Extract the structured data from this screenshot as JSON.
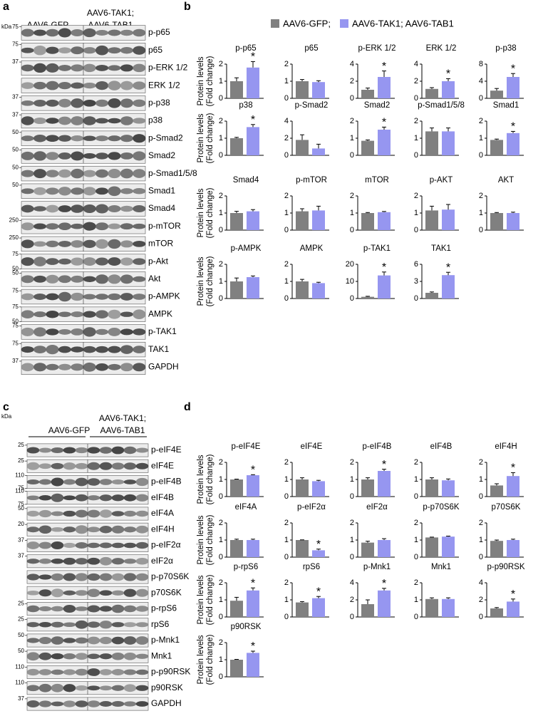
{
  "panel_a": {
    "label": "a",
    "kda": "kDa",
    "group_1": [
      "AAV6-GFP"
    ],
    "group_2": [
      "AAV6-TAK1;",
      "AAV6-TAB1"
    ],
    "rows": [
      {
        "name": "p-p65",
        "markers": [
          "75"
        ]
      },
      {
        "name": "p65",
        "markers": [
          "75"
        ]
      },
      {
        "name": "p-ERK 1/2",
        "markers": [
          "37"
        ]
      },
      {
        "name": "ERK 1/2",
        "markers": []
      },
      {
        "name": "p-p38",
        "markers": [
          "37"
        ]
      },
      {
        "name": "p38",
        "markers": [
          "37"
        ]
      },
      {
        "name": "p-Smad2",
        "markers": [
          "50"
        ]
      },
      {
        "name": "Smad2",
        "markers": [
          "50"
        ]
      },
      {
        "name": "p-Smad1/5/8",
        "markers": [
          "50"
        ]
      },
      {
        "name": "Smad1",
        "markers": [
          "50"
        ]
      },
      {
        "name": "Smad4",
        "markers": []
      },
      {
        "name": "p-mTOR",
        "markers": [
          "250"
        ]
      },
      {
        "name": "mTOR",
        "markers": [
          "250"
        ]
      },
      {
        "name": "p-Akt",
        "markers": [
          "75",
          "50"
        ]
      },
      {
        "name": "Akt",
        "markers": [
          "50"
        ]
      },
      {
        "name": "p-AMPK",
        "markers": [
          "75"
        ]
      },
      {
        "name": "AMPK",
        "markers": [
          "75",
          "50"
        ]
      },
      {
        "name": "p-TAK1",
        "markers": [
          "75"
        ]
      },
      {
        "name": "TAK1",
        "markers": [
          "75"
        ]
      },
      {
        "name": "GAPDH",
        "markers": [
          "37"
        ]
      }
    ]
  },
  "panel_b": {
    "label": "b"
  },
  "panel_c": {
    "label": "c",
    "kda": "kDa",
    "group_1": [
      "AAV6-GFP"
    ],
    "group_2": [
      "AAV6-TAK1;",
      "AAV6-TAB1"
    ],
    "rows": [
      {
        "name": "p-eIF4E",
        "markers": [
          "25"
        ]
      },
      {
        "name": "eIF4E",
        "markers": [
          "25"
        ]
      },
      {
        "name": "p-eIF4B",
        "markers": [
          "110",
          "75"
        ]
      },
      {
        "name": "eIF4B",
        "markers": [
          "110",
          "75"
        ]
      },
      {
        "name": "eIF4A",
        "markers": [
          "50"
        ]
      },
      {
        "name": "eIF4H",
        "markers": [
          "20"
        ]
      },
      {
        "name": "p-eIF2α",
        "markers": [
          "37"
        ]
      },
      {
        "name": "eIF2α",
        "markers": [
          "37"
        ]
      },
      {
        "name": "p-p70S6K",
        "markers": []
      },
      {
        "name": "p70S6K",
        "markers": []
      },
      {
        "name": "p-rpS6",
        "markers": [
          "25"
        ]
      },
      {
        "name": "rpS6",
        "markers": [
          "25"
        ]
      },
      {
        "name": "p-Mnk1",
        "markers": [
          "50"
        ]
      },
      {
        "name": "Mnk1",
        "markers": [
          "50"
        ]
      },
      {
        "name": "p-p90RSK",
        "markers": [
          "110"
        ]
      },
      {
        "name": "p90RSK",
        "markers": [
          "110"
        ]
      },
      {
        "name": "GAPDH",
        "markers": [
          "37"
        ]
      }
    ]
  },
  "panel_d": {
    "label": "d"
  },
  "legend": {
    "entries": [
      "AAV6-GFP;",
      "AAV6-TAK1; AAV6-TAB1"
    ],
    "colors": [
      "#808080",
      "#9696f0"
    ]
  },
  "y_label": [
    "Protein levels",
    "(Fold change)"
  ],
  "chart_data": [
    {
      "type": "bar",
      "title": "p-p65",
      "values": [
        1.0,
        1.8
      ],
      "errors": [
        0.2,
        0.35
      ],
      "ylim": [
        0,
        2
      ],
      "yticks": [
        0,
        1,
        2
      ],
      "annotation": "*"
    },
    {
      "type": "bar",
      "title": "p65",
      "values": [
        1.0,
        0.95
      ],
      "errors": [
        0.1,
        0.08
      ],
      "ylim": [
        0,
        2
      ],
      "yticks": [
        0,
        1,
        2
      ]
    },
    {
      "type": "bar",
      "title": "p-ERK 1/2",
      "values": [
        1.0,
        2.5
      ],
      "errors": [
        0.2,
        0.7
      ],
      "ylim": [
        0,
        4
      ],
      "yticks": [
        0,
        2,
        4
      ],
      "annotation": "*"
    },
    {
      "type": "bar",
      "title": "ERK 1/2",
      "values": [
        1.1,
        2.0
      ],
      "errors": [
        0.15,
        0.3
      ],
      "ylim": [
        0,
        4
      ],
      "yticks": [
        0,
        2,
        4
      ],
      "annotation": "*"
    },
    {
      "type": "bar",
      "title": "p-p38",
      "values": [
        1.8,
        5.0
      ],
      "errors": [
        0.5,
        0.8
      ],
      "ylim": [
        0,
        8
      ],
      "yticks": [
        0,
        4,
        8
      ],
      "annotation": "*"
    },
    {
      "type": "bar",
      "title": "p38",
      "values": [
        1.0,
        1.65
      ],
      "errors": [
        0.05,
        0.15
      ],
      "ylim": [
        0,
        2
      ],
      "yticks": [
        0,
        1,
        2
      ],
      "annotation": "*"
    },
    {
      "type": "bar",
      "title": "p-Smad2",
      "values": [
        1.8,
        0.8
      ],
      "errors": [
        0.6,
        0.5
      ],
      "ylim": [
        0,
        4
      ],
      "yticks": [
        0,
        2,
        4
      ]
    },
    {
      "type": "bar",
      "title": "Smad2",
      "values": [
        0.85,
        1.5
      ],
      "errors": [
        0.05,
        0.15
      ],
      "ylim": [
        0,
        2
      ],
      "yticks": [
        0,
        1,
        2
      ],
      "annotation": "*"
    },
    {
      "type": "bar",
      "title": "p-Smad1/5/8",
      "values": [
        1.4,
        1.4
      ],
      "errors": [
        0.2,
        0.2
      ],
      "ylim": [
        0,
        2
      ],
      "yticks": [
        0,
        1,
        2
      ]
    },
    {
      "type": "bar",
      "title": "Smad1",
      "values": [
        0.9,
        1.3
      ],
      "errors": [
        0.05,
        0.1
      ],
      "ylim": [
        0,
        2
      ],
      "yticks": [
        0,
        1,
        2
      ],
      "annotation": "*"
    },
    {
      "type": "bar",
      "title": "Smad4",
      "values": [
        1.0,
        1.1
      ],
      "errors": [
        0.1,
        0.1
      ],
      "ylim": [
        0,
        2
      ],
      "yticks": [
        0,
        1,
        2
      ]
    },
    {
      "type": "bar",
      "title": "p-mTOR",
      "values": [
        1.1,
        1.15
      ],
      "errors": [
        0.15,
        0.25
      ],
      "ylim": [
        0,
        2
      ],
      "yticks": [
        0,
        1,
        2
      ]
    },
    {
      "type": "bar",
      "title": "mTOR",
      "values": [
        1.0,
        1.05
      ],
      "errors": [
        0.03,
        0.04
      ],
      "ylim": [
        0,
        2
      ],
      "yticks": [
        0,
        1,
        2
      ]
    },
    {
      "type": "bar",
      "title": "p-AKT",
      "values": [
        1.15,
        1.2
      ],
      "errors": [
        0.25,
        0.3
      ],
      "ylim": [
        0,
        2
      ],
      "yticks": [
        0,
        1,
        2
      ]
    },
    {
      "type": "bar",
      "title": "AKT",
      "values": [
        1.0,
        1.0
      ],
      "errors": [
        0.03,
        0.05
      ],
      "ylim": [
        0,
        2
      ],
      "yticks": [
        0,
        1,
        2
      ]
    },
    {
      "type": "bar",
      "title": "p-AMPK",
      "values": [
        1.0,
        1.25
      ],
      "errors": [
        0.2,
        0.07
      ],
      "ylim": [
        0,
        2
      ],
      "yticks": [
        0,
        1,
        2
      ]
    },
    {
      "type": "bar",
      "title": "AMPK",
      "values": [
        1.0,
        0.9
      ],
      "errors": [
        0.12,
        0.05
      ],
      "ylim": [
        0,
        2
      ],
      "yticks": [
        0,
        1,
        2
      ]
    },
    {
      "type": "bar",
      "title": "p-TAK1",
      "values": [
        1.0,
        13.5
      ],
      "errors": [
        0.3,
        2.0
      ],
      "ylim": [
        0,
        20
      ],
      "yticks": [
        0,
        10,
        20
      ],
      "annotation": "*"
    },
    {
      "type": "bar",
      "title": "TAK1",
      "values": [
        1.0,
        4.1
      ],
      "errors": [
        0.15,
        0.5
      ],
      "ylim": [
        0,
        6
      ],
      "yticks": [
        0,
        3,
        6
      ],
      "annotation": "*"
    },
    {
      "type": "bar",
      "title": "p-eIF4E",
      "values": [
        1.0,
        1.25
      ],
      "errors": [
        0.02,
        0.03
      ],
      "ylim": [
        0,
        2
      ],
      "yticks": [
        0,
        1,
        2
      ],
      "annotation": "*"
    },
    {
      "type": "bar",
      "title": "eIF4E",
      "values": [
        1.0,
        0.9
      ],
      "errors": [
        0.1,
        0.05
      ],
      "ylim": [
        0,
        2
      ],
      "yticks": [
        0,
        1,
        2
      ]
    },
    {
      "type": "bar",
      "title": "p-eIF4B",
      "values": [
        1.0,
        1.5
      ],
      "errors": [
        0.1,
        0.1
      ],
      "ylim": [
        0,
        2
      ],
      "yticks": [
        0,
        1,
        2
      ],
      "annotation": "*"
    },
    {
      "type": "bar",
      "title": "eIF4B",
      "values": [
        1.0,
        0.95
      ],
      "errors": [
        0.1,
        0.08
      ],
      "ylim": [
        0,
        2
      ],
      "yticks": [
        0,
        1,
        2
      ]
    },
    {
      "type": "bar",
      "title": "eIF4H",
      "values": [
        0.65,
        1.2
      ],
      "errors": [
        0.1,
        0.2
      ],
      "ylim": [
        0,
        2
      ],
      "yticks": [
        0,
        1,
        2
      ],
      "annotation": "*"
    },
    {
      "type": "bar",
      "title": "eIF4A",
      "values": [
        1.0,
        1.0
      ],
      "errors": [
        0.05,
        0.05
      ],
      "ylim": [
        0,
        2
      ],
      "yticks": [
        0,
        1,
        2
      ]
    },
    {
      "type": "bar",
      "title": "p-eIF2α",
      "values": [
        1.0,
        0.4
      ],
      "errors": [
        0.01,
        0.07
      ],
      "ylim": [
        0,
        2
      ],
      "yticks": [
        0,
        1,
        2
      ],
      "annotation": "*"
    },
    {
      "type": "bar",
      "title": "eIF2α",
      "values": [
        0.85,
        1.0
      ],
      "errors": [
        0.08,
        0.08
      ],
      "ylim": [
        0,
        2
      ],
      "yticks": [
        0,
        1,
        2
      ]
    },
    {
      "type": "bar",
      "title": "p-p70S6K",
      "values": [
        1.15,
        1.2
      ],
      "errors": [
        0.02,
        0.03
      ],
      "ylim": [
        0,
        2
      ],
      "yticks": [
        0,
        1,
        2
      ]
    },
    {
      "type": "bar",
      "title": "p70S6K",
      "values": [
        0.95,
        1.0
      ],
      "errors": [
        0.05,
        0.05
      ],
      "ylim": [
        0,
        2
      ],
      "yticks": [
        0,
        1,
        2
      ]
    },
    {
      "type": "bar",
      "title": "p-rpS6",
      "values": [
        0.95,
        1.55
      ],
      "errors": [
        0.2,
        0.15
      ],
      "ylim": [
        0,
        2
      ],
      "yticks": [
        0,
        1,
        2
      ],
      "annotation": "*"
    },
    {
      "type": "bar",
      "title": "rpS6",
      "values": [
        0.85,
        1.1
      ],
      "errors": [
        0.05,
        0.1
      ],
      "ylim": [
        0,
        2
      ],
      "yticks": [
        0,
        1,
        2
      ],
      "annotation": "*"
    },
    {
      "type": "bar",
      "title": "p-Mnk1",
      "values": [
        1.5,
        3.1
      ],
      "errors": [
        0.5,
        0.25
      ],
      "ylim": [
        0,
        4
      ],
      "yticks": [
        0,
        2,
        4
      ],
      "annotation": "*"
    },
    {
      "type": "bar",
      "title": "Mnk1",
      "values": [
        1.05,
        1.05
      ],
      "errors": [
        0.07,
        0.07
      ],
      "ylim": [
        0,
        2
      ],
      "yticks": [
        0,
        1,
        2
      ]
    },
    {
      "type": "bar",
      "title": "p-p90RSK",
      "values": [
        1.0,
        1.8
      ],
      "errors": [
        0.1,
        0.3
      ],
      "ylim": [
        0,
        4
      ],
      "yticks": [
        0,
        2,
        4
      ],
      "annotation": "*"
    },
    {
      "type": "bar",
      "title": "p90RSK",
      "values": [
        1.0,
        1.4
      ],
      "errors": [
        0.02,
        0.1
      ],
      "ylim": [
        0,
        2
      ],
      "yticks": [
        0,
        1,
        2
      ],
      "annotation": "*"
    }
  ]
}
